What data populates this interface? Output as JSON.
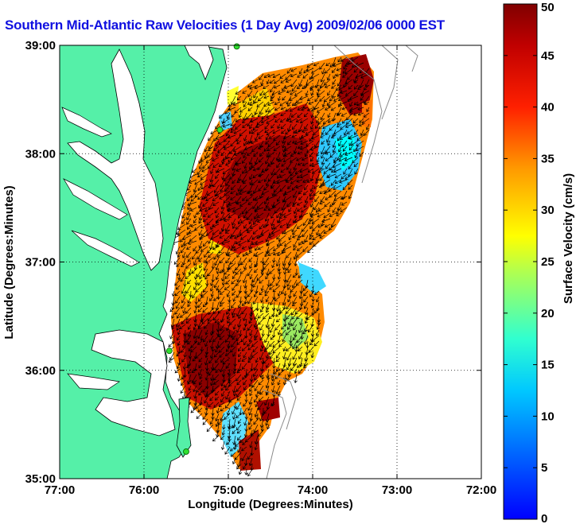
{
  "title": "Southern Mid-Atlantic Raw Velocities (1 Day Avg) 2009/02/06 0000 EST",
  "map": {
    "xlabel": "Longitude (Degrees:Minutes)",
    "ylabel": "Latitude (Degrees:Minutes)",
    "x_ticks": [
      "77:00",
      "76:00",
      "75:00",
      "74:00",
      "73:00",
      "72:00"
    ],
    "y_ticks": [
      "39:00",
      "38:00",
      "37:00",
      "36:00",
      "35:00"
    ],
    "lon_range": [
      -77,
      -72
    ],
    "lat_range": [
      35,
      39
    ],
    "grid": "dotted",
    "land_color": "#55f0a8",
    "coast_color": "#000000"
  },
  "colorbar": {
    "label": "Surface Velocity (cm/s)",
    "ticks": [
      "0",
      "5",
      "10",
      "15",
      "20",
      "25",
      "30",
      "35",
      "40",
      "45",
      "50"
    ],
    "range": [
      0,
      50
    ],
    "colormap": "jet"
  },
  "stations": [
    {
      "lon": -74.9,
      "lat": 38.99
    },
    {
      "lon": -75.1,
      "lat": 38.22
    },
    {
      "lon": -75.7,
      "lat": 36.18
    },
    {
      "lon": -75.5,
      "lat": 35.25
    }
  ]
}
